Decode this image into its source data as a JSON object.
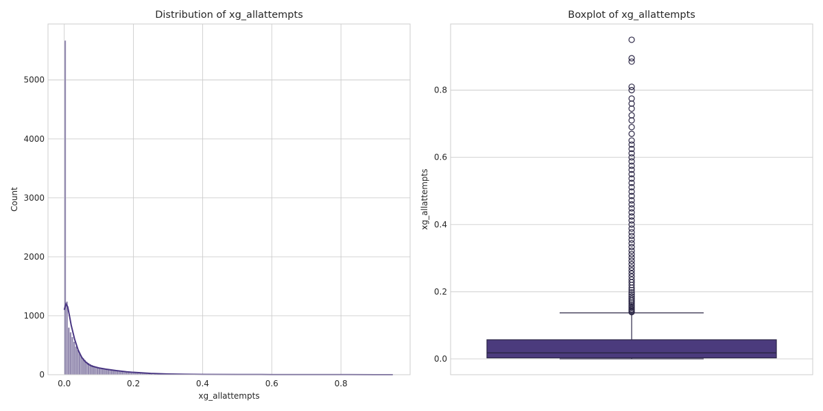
{
  "colors": {
    "bar_fill": "#8a80a8",
    "kde_line": "#483582",
    "box_fill": "#4b3b7d",
    "box_edge": "#2b2645",
    "grid": "#cccccc",
    "text": "#262626"
  },
  "chart_data": [
    {
      "type": "histogram",
      "title": "Distribution of xg_allattempts",
      "xlabel": "xg_allattempts",
      "ylabel": "Count",
      "xlim": [
        -0.047,
        1.0
      ],
      "ylim": [
        0,
        5950
      ],
      "xticks": [
        0.0,
        0.2,
        0.4,
        0.6,
        0.8
      ],
      "xtick_labels": [
        "0.0",
        "0.2",
        "0.4",
        "0.6",
        "0.8"
      ],
      "yticks": [
        0,
        1000,
        2000,
        3000,
        4000,
        5000
      ],
      "ytick_labels": [
        "0",
        "1000",
        "2000",
        "3000",
        "4000",
        "5000"
      ],
      "grid": true,
      "bin_width": 0.0052,
      "bins": {
        "x": [
          0.0,
          0.0052,
          0.0104,
          0.0156,
          0.0208,
          0.026,
          0.0312,
          0.0364,
          0.0416,
          0.0468,
          0.052,
          0.0572,
          0.0624,
          0.0676,
          0.0728,
          0.078,
          0.0832,
          0.0884,
          0.0936,
          0.0988,
          0.104,
          0.1092,
          0.1144,
          0.1196,
          0.1248,
          0.13,
          0.1352,
          0.1404,
          0.1456,
          0.1508,
          0.156,
          0.1612,
          0.1664,
          0.1716,
          0.1768,
          0.182,
          0.1872,
          0.1924,
          0.1976,
          0.2028,
          0.208,
          0.2132,
          0.2184,
          0.2236,
          0.2288,
          0.234,
          0.2392,
          0.2444,
          0.2496,
          0.26,
          0.28,
          0.3,
          0.32,
          0.34,
          0.36,
          0.38,
          0.4,
          0.45,
          0.5,
          0.55,
          0.6,
          0.65,
          0.7,
          0.75,
          0.8,
          0.85,
          0.9
        ],
        "counts": [
          5670,
          1240,
          800,
          720,
          640,
          560,
          480,
          420,
          360,
          320,
          280,
          250,
          220,
          200,
          180,
          165,
          150,
          140,
          130,
          120,
          112,
          104,
          96,
          90,
          84,
          78,
          73,
          68,
          64,
          60,
          56,
          52,
          48,
          45,
          42,
          39,
          36,
          34,
          32,
          30,
          28,
          26,
          24,
          22,
          20,
          18,
          17,
          16,
          15,
          14,
          12,
          10,
          8,
          7,
          6,
          5,
          4,
          3,
          3,
          2,
          2,
          2,
          1,
          1,
          1,
          1,
          1
        ]
      },
      "kde": {
        "x": [
          0.0,
          0.005,
          0.01,
          0.015,
          0.02,
          0.03,
          0.04,
          0.05,
          0.06,
          0.07,
          0.08,
          0.1,
          0.12,
          0.15,
          0.18,
          0.2,
          0.25,
          0.3,
          0.35,
          0.4,
          0.5,
          0.6,
          0.7,
          0.8,
          0.9,
          0.95
        ],
        "y": [
          1100,
          1200,
          1150,
          1000,
          840,
          600,
          420,
          300,
          225,
          175,
          145,
          115,
          95,
          70,
          50,
          40,
          22,
          12,
          7,
          5,
          3,
          2,
          1.5,
          1,
          0.5,
          0.3
        ]
      }
    },
    {
      "type": "box",
      "title": "Boxplot of xg_allattempts",
      "ylabel": "xg_allattempts",
      "ylim": [
        -0.047,
        0.997
      ],
      "yticks": [
        0.0,
        0.2,
        0.4,
        0.6,
        0.8
      ],
      "ytick_labels": [
        "0.0",
        "0.2",
        "0.4",
        "0.6",
        "0.8"
      ],
      "grid": true,
      "box": {
        "q1": 0.003,
        "median": 0.018,
        "q3": 0.057,
        "whisker_low": 0.0,
        "whisker_high": 0.137
      },
      "outliers": [
        0.139,
        0.142,
        0.145,
        0.148,
        0.152,
        0.156,
        0.16,
        0.165,
        0.17,
        0.175,
        0.18,
        0.186,
        0.192,
        0.198,
        0.205,
        0.212,
        0.22,
        0.228,
        0.236,
        0.245,
        0.254,
        0.263,
        0.272,
        0.282,
        0.292,
        0.302,
        0.312,
        0.322,
        0.333,
        0.344,
        0.355,
        0.366,
        0.377,
        0.388,
        0.4,
        0.412,
        0.424,
        0.436,
        0.448,
        0.46,
        0.472,
        0.485,
        0.498,
        0.511,
        0.524,
        0.537,
        0.55,
        0.563,
        0.575,
        0.588,
        0.6,
        0.612,
        0.625,
        0.638,
        0.65,
        0.67,
        0.69,
        0.71,
        0.725,
        0.745,
        0.76,
        0.775,
        0.8,
        0.81,
        0.885,
        0.895,
        0.95
      ]
    }
  ]
}
